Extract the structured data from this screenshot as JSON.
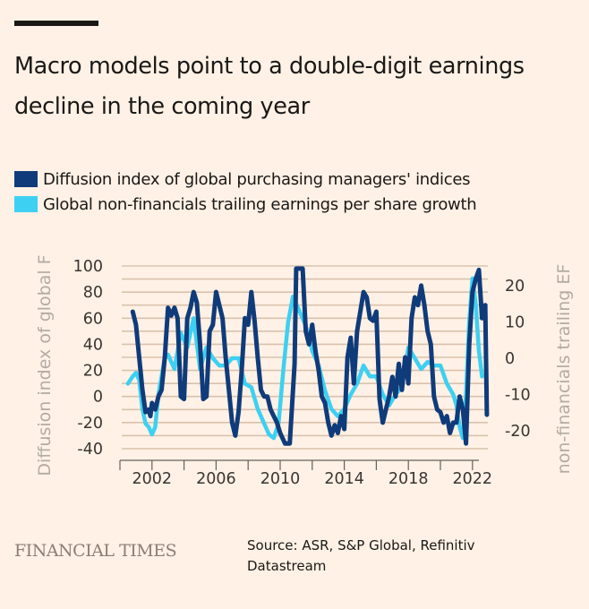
{
  "header": {
    "title": "Macro models point to a double-digit earnings decline in the coming year"
  },
  "colors": {
    "background": "#fff1e5",
    "pmi": "#0f3b7a",
    "eps": "#3dd0f2",
    "grid": "#d9c2ad",
    "axis_title": "#b3aba3",
    "tick_text": "#3a3532"
  },
  "footer": {
    "logo": "FINANCIAL TIMES",
    "source": "Source: ASR, S&P Global, Refinitiv Datastream"
  },
  "chart_data": {
    "type": "line",
    "title": "Macro models point to a double-digit earnings decline in the coming year",
    "xlabel": "",
    "ylabel": "Diffusion index of global PMIs",
    "ylabel2": "Global non-financials trailing EPS growth",
    "ylabel_visible": "Diffusion index of global F",
    "ylabel2_visible": "non-financials trailing EF",
    "xlim": [
      2000,
      2023.2
    ],
    "ylim": [
      -40,
      100
    ],
    "ylim2": [
      -25,
      25
    ],
    "x_ticks": [
      2002,
      2006,
      2010,
      2014,
      2018,
      2022
    ],
    "x_tick_labels": [
      "2002",
      "2006",
      "2010",
      "2014",
      "2018",
      "2022"
    ],
    "y_ticks": [
      -40,
      -20,
      0,
      20,
      40,
      60,
      80,
      100
    ],
    "y_tick_labels": [
      "-40",
      "-20",
      "0",
      "20",
      "40",
      "60",
      "80",
      "100"
    ],
    "y2_ticks": [
      -20,
      -10,
      0,
      10,
      20
    ],
    "y2_tick_labels": [
      "-20",
      "-10",
      "0",
      "10",
      "20"
    ],
    "grid": true,
    "legend": "top-left",
    "series": [
      {
        "name": "Diffusion index of global purchasing managers' indices",
        "axis": "left",
        "x": [
          2000.8,
          2000.9,
          2001.0,
          2001.2,
          2001.4,
          2001.6,
          2001.8,
          2001.9,
          2002.0,
          2002.2,
          2002.4,
          2002.6,
          2002.8,
          2003.0,
          2003.2,
          2003.4,
          2003.6,
          2003.8,
          2004.0,
          2004.2,
          2004.4,
          2004.6,
          2004.8,
          2005.0,
          2005.2,
          2005.4,
          2005.6,
          2005.8,
          2006.0,
          2006.2,
          2006.4,
          2006.6,
          2006.8,
          2007.0,
          2007.2,
          2007.4,
          2007.6,
          2007.8,
          2008.0,
          2008.2,
          2008.4,
          2008.6,
          2008.8,
          2009.0,
          2009.2,
          2009.4,
          2009.6,
          2009.8,
          2010.0,
          2010.3,
          2010.6,
          2010.9,
          2011.0,
          2011.2,
          2011.4,
          2011.6,
          2011.8,
          2012.0,
          2012.2,
          2012.4,
          2012.6,
          2012.8,
          2013.0,
          2013.2,
          2013.4,
          2013.6,
          2013.8,
          2014.0,
          2014.2,
          2014.4,
          2014.6,
          2014.8,
          2015.0,
          2015.2,
          2015.4,
          2015.6,
          2015.8,
          2016.0,
          2016.2,
          2016.4,
          2016.6,
          2016.8,
          2017.0,
          2017.2,
          2017.4,
          2017.6,
          2017.8,
          2018.0,
          2018.2,
          2018.4,
          2018.6,
          2018.8,
          2019.0,
          2019.2,
          2019.4,
          2019.6,
          2019.8,
          2020.0,
          2020.2,
          2020.4,
          2020.6,
          2020.8,
          2021.0,
          2021.2,
          2021.4,
          2021.6,
          2021.8,
          2022.0,
          2022.2,
          2022.4,
          2022.6,
          2022.8,
          2022.9
        ],
        "values": [
          65,
          60,
          55,
          30,
          5,
          -12,
          -10,
          -15,
          -5,
          -10,
          0,
          5,
          30,
          68,
          62,
          68,
          60,
          0,
          -2,
          60,
          68,
          80,
          72,
          40,
          -2,
          0,
          50,
          55,
          80,
          70,
          60,
          30,
          5,
          -20,
          -30,
          -12,
          20,
          60,
          55,
          80,
          58,
          30,
          5,
          0,
          0,
          -10,
          -15,
          -20,
          -28,
          -36,
          -36,
          25,
          98,
          98,
          98,
          50,
          40,
          55,
          35,
          20,
          0,
          -5,
          -20,
          -30,
          -22,
          -28,
          -15,
          -25,
          30,
          45,
          10,
          50,
          65,
          80,
          76,
          60,
          58,
          65,
          -2,
          -20,
          -10,
          0,
          15,
          0,
          25,
          5,
          30,
          10,
          60,
          76,
          70,
          85,
          70,
          50,
          40,
          0,
          -10,
          -12,
          -20,
          -15,
          -28,
          -20,
          -20,
          0,
          -10,
          -36,
          40,
          80,
          90,
          97,
          60,
          70,
          -14
        ],
        "color": "#0f3b7a"
      },
      {
        "name": "Global non-financials trailing earnings per share growth",
        "axis": "right",
        "x": [
          2000.5,
          2000.8,
          2001.0,
          2001.2,
          2001.4,
          2001.6,
          2001.8,
          2002.0,
          2002.2,
          2002.4,
          2002.6,
          2002.8,
          2003.0,
          2003.4,
          2003.8,
          2004.2,
          2004.6,
          2005.0,
          2005.4,
          2005.8,
          2006.2,
          2006.6,
          2007.0,
          2007.4,
          2007.8,
          2008.2,
          2008.6,
          2009.0,
          2009.3,
          2009.6,
          2009.9,
          2010.2,
          2010.5,
          2010.8,
          2011.0,
          2011.3,
          2011.6,
          2012.0,
          2012.4,
          2012.8,
          2013.2,
          2013.6,
          2014.0,
          2014.4,
          2014.8,
          2015.2,
          2015.6,
          2016.0,
          2016.4,
          2016.8,
          2017.2,
          2017.6,
          2018.0,
          2018.4,
          2018.8,
          2019.2,
          2019.6,
          2020.0,
          2020.4,
          2020.8,
          2021.0,
          2021.2,
          2021.4,
          2021.6,
          2021.8,
          2022.0,
          2022.2,
          2022.4,
          2022.6
        ],
        "values": [
          -7,
          -5,
          -4,
          -6,
          -14,
          -18,
          -19,
          -21,
          -19,
          -10,
          -5,
          0,
          1,
          -3,
          7,
          3,
          11,
          -3,
          3,
          0,
          -2,
          -2,
          0,
          0,
          -7,
          -8,
          -14,
          -18,
          -21,
          -22,
          -18,
          -3,
          10,
          17,
          15,
          12,
          9,
          2,
          -2,
          -9,
          -14,
          -16,
          -14,
          -10,
          -7,
          -2,
          -5,
          -5,
          -10,
          -13,
          -10,
          -8,
          3,
          0,
          -3,
          -1,
          -2,
          -2,
          -7,
          -10,
          -13,
          -19,
          -22,
          -10,
          10,
          22,
          15,
          2,
          -5
        ],
        "color": "#3dd0f2"
      }
    ]
  }
}
